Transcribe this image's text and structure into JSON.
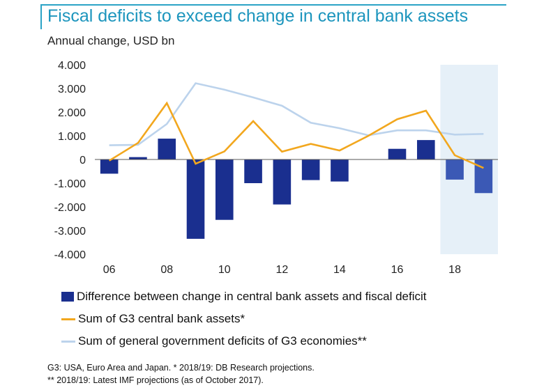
{
  "header": {
    "title": "Fiscal deficits to exceed change in central bank assets",
    "unit": "Annual change, USD bn"
  },
  "colors": {
    "bar_actual": "#1a2f8f",
    "bar_projection": "#3b59b5",
    "cb_assets_line": "#f2a71e",
    "deficit_line": "#bcd3ec",
    "projection_shade": "#e6f0f8",
    "title_accent": "#1c95bd"
  },
  "legend": {
    "bar_label": "Difference between change in central bank assets and fiscal deficit",
    "cb_label": "Sum of G3 central bank assets*",
    "deficit_label": "Sum of general government deficits of G3 economies**"
  },
  "notes": {
    "line1": "G3: USA,  Euro Area and Japan. * 2018/19: DB Research projections.",
    "line2": "** 2018/19: Latest IMF projections (as of October 2017)."
  },
  "chart_data": {
    "type": "bar",
    "title": "Fiscal deficits to exceed change in central bank assets",
    "ylabel": "Annual change, USD bn",
    "x": [
      2006,
      2007,
      2008,
      2009,
      2010,
      2011,
      2012,
      2013,
      2014,
      2015,
      2016,
      2017,
      2018,
      2019
    ],
    "x_tick_values": [
      2006,
      2008,
      2010,
      2012,
      2014,
      2016,
      2018
    ],
    "x_tick_labels": [
      "06",
      "08",
      "10",
      "12",
      "14",
      "16",
      "18"
    ],
    "y_ticks": [
      4000,
      3000,
      2000,
      1000,
      0,
      -1000,
      -2000,
      -3000,
      -4000
    ],
    "y_tick_labels": [
      "4.000",
      "3.000",
      "2.000",
      "1.000",
      "0",
      "-1.000",
      "-2.000",
      "-3.000",
      "-4.000"
    ],
    "ylim": [
      -4000,
      4000
    ],
    "projection_shaded_from": 2018,
    "grid": false,
    "legend_position": "bottom",
    "series": [
      {
        "name": "Difference between change in central bank assets and fiscal deficit",
        "type": "bar",
        "values": [
          -600,
          100,
          880,
          -3350,
          -2550,
          -1000,
          -1900,
          -870,
          -930,
          0,
          450,
          820,
          -850,
          -1420
        ]
      },
      {
        "name": "Sum of G3 central bank assets*",
        "type": "line",
        "values": [
          -50,
          700,
          2380,
          -180,
          340,
          1620,
          330,
          660,
          380,
          1000,
          1700,
          2060,
          180,
          -360
        ]
      },
      {
        "name": "Sum of general government deficits of G3 economies**",
        "type": "line",
        "values": [
          600,
          620,
          1500,
          3220,
          2950,
          2620,
          2270,
          1550,
          1320,
          1020,
          1230,
          1230,
          1050,
          1080
        ]
      }
    ]
  }
}
